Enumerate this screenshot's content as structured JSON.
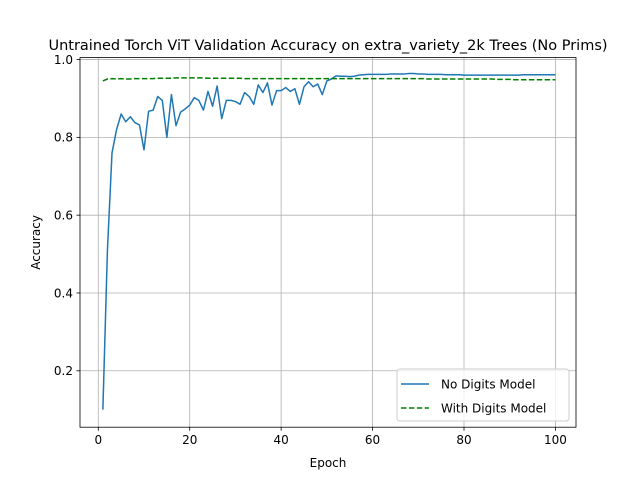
{
  "chart_data": {
    "type": "line",
    "title": "Untrained Torch ViT Validation Accuracy on extra_variety_2k Trees (No Prims)",
    "xlabel": "Epoch",
    "ylabel": "Accuracy",
    "xlim": [
      -4,
      104.5
    ],
    "ylim": [
      0.055,
      1.005
    ],
    "xticks": [
      0,
      20,
      40,
      60,
      80,
      100
    ],
    "xtick_labels": [
      "0",
      "20",
      "40",
      "60",
      "80",
      "100"
    ],
    "yticks": [
      0.2,
      0.4,
      0.6,
      0.8,
      1.0
    ],
    "ytick_labels": [
      "0.2",
      "0.4",
      "0.6",
      "0.8",
      "1.0"
    ],
    "grid": true,
    "legend_position": "lower-right",
    "series": [
      {
        "name": "No Digits Model",
        "color": "#1f77b4",
        "linestyle": "solid",
        "x": [
          1,
          2,
          3,
          4,
          5,
          6,
          7,
          8,
          9,
          10,
          11,
          12,
          13,
          14,
          15,
          16,
          17,
          18,
          19,
          20,
          21,
          22,
          23,
          24,
          25,
          26,
          27,
          28,
          29,
          30,
          31,
          32,
          33,
          34,
          35,
          36,
          37,
          38,
          39,
          40,
          41,
          42,
          43,
          44,
          45,
          46,
          47,
          48,
          49,
          50,
          51,
          52,
          53,
          54,
          55,
          56,
          57,
          58,
          59,
          60,
          61,
          62,
          63,
          64,
          65,
          66,
          67,
          68,
          69,
          70,
          71,
          72,
          73,
          74,
          75,
          76,
          77,
          78,
          79,
          80,
          81,
          82,
          83,
          84,
          85,
          86,
          87,
          88,
          89,
          90,
          91,
          92,
          93,
          94,
          95,
          96,
          97,
          98,
          99,
          100
        ],
        "y": [
          0.1,
          0.51,
          0.76,
          0.82,
          0.86,
          0.84,
          0.853,
          0.838,
          0.832,
          0.768,
          0.867,
          0.87,
          0.905,
          0.895,
          0.8,
          0.91,
          0.83,
          0.865,
          0.873,
          0.883,
          0.902,
          0.895,
          0.87,
          0.918,
          0.88,
          0.932,
          0.848,
          0.895,
          0.895,
          0.892,
          0.885,
          0.915,
          0.905,
          0.885,
          0.935,
          0.915,
          0.94,
          0.883,
          0.92,
          0.92,
          0.928,
          0.918,
          0.925,
          0.885,
          0.93,
          0.943,
          0.93,
          0.937,
          0.91,
          0.945,
          0.95,
          0.958,
          0.957,
          0.957,
          0.956,
          0.957,
          0.96,
          0.961,
          0.962,
          0.962,
          0.962,
          0.962,
          0.962,
          0.963,
          0.963,
          0.963,
          0.963,
          0.964,
          0.964,
          0.963,
          0.963,
          0.962,
          0.962,
          0.962,
          0.962,
          0.961,
          0.961,
          0.961,
          0.961,
          0.96,
          0.96,
          0.96,
          0.96,
          0.96,
          0.96,
          0.96,
          0.96,
          0.96,
          0.96,
          0.96,
          0.96,
          0.96,
          0.961,
          0.961,
          0.961,
          0.961,
          0.961,
          0.961,
          0.961,
          0.961
        ]
      },
      {
        "name": "With Digits Model",
        "color": "#008000",
        "linestyle": "dashed",
        "x": [
          1,
          2,
          3,
          4,
          5,
          6,
          7,
          8,
          9,
          10,
          11,
          12,
          13,
          14,
          15,
          16,
          17,
          18,
          19,
          20,
          21,
          22,
          23,
          24,
          25,
          26,
          27,
          28,
          29,
          30,
          31,
          32,
          33,
          34,
          35,
          36,
          37,
          38,
          39,
          40,
          41,
          42,
          43,
          44,
          45,
          46,
          47,
          48,
          49,
          50,
          51,
          52,
          53,
          54,
          55,
          56,
          57,
          58,
          59,
          60,
          61,
          62,
          63,
          64,
          65,
          66,
          67,
          68,
          69,
          70,
          71,
          72,
          73,
          74,
          75,
          76,
          77,
          78,
          79,
          80,
          81,
          82,
          83,
          84,
          85,
          86,
          87,
          88,
          89,
          90,
          91,
          92,
          93,
          94,
          95,
          96,
          97,
          98,
          99,
          100
        ],
        "y": [
          0.945,
          0.95,
          0.951,
          0.95,
          0.951,
          0.95,
          0.95,
          0.951,
          0.951,
          0.951,
          0.951,
          0.951,
          0.952,
          0.952,
          0.952,
          0.952,
          0.953,
          0.953,
          0.953,
          0.953,
          0.953,
          0.953,
          0.953,
          0.952,
          0.952,
          0.952,
          0.952,
          0.952,
          0.952,
          0.952,
          0.952,
          0.951,
          0.951,
          0.951,
          0.951,
          0.951,
          0.951,
          0.951,
          0.951,
          0.951,
          0.951,
          0.951,
          0.951,
          0.951,
          0.951,
          0.951,
          0.951,
          0.951,
          0.951,
          0.951,
          0.951,
          0.951,
          0.951,
          0.951,
          0.951,
          0.951,
          0.951,
          0.951,
          0.951,
          0.951,
          0.951,
          0.951,
          0.951,
          0.951,
          0.951,
          0.951,
          0.951,
          0.951,
          0.951,
          0.951,
          0.951,
          0.95,
          0.95,
          0.95,
          0.95,
          0.95,
          0.95,
          0.95,
          0.95,
          0.95,
          0.95,
          0.95,
          0.95,
          0.95,
          0.95,
          0.95,
          0.949,
          0.949,
          0.949,
          0.949,
          0.948,
          0.948,
          0.948,
          0.948,
          0.948,
          0.948,
          0.948,
          0.948,
          0.948,
          0.948
        ]
      }
    ]
  }
}
